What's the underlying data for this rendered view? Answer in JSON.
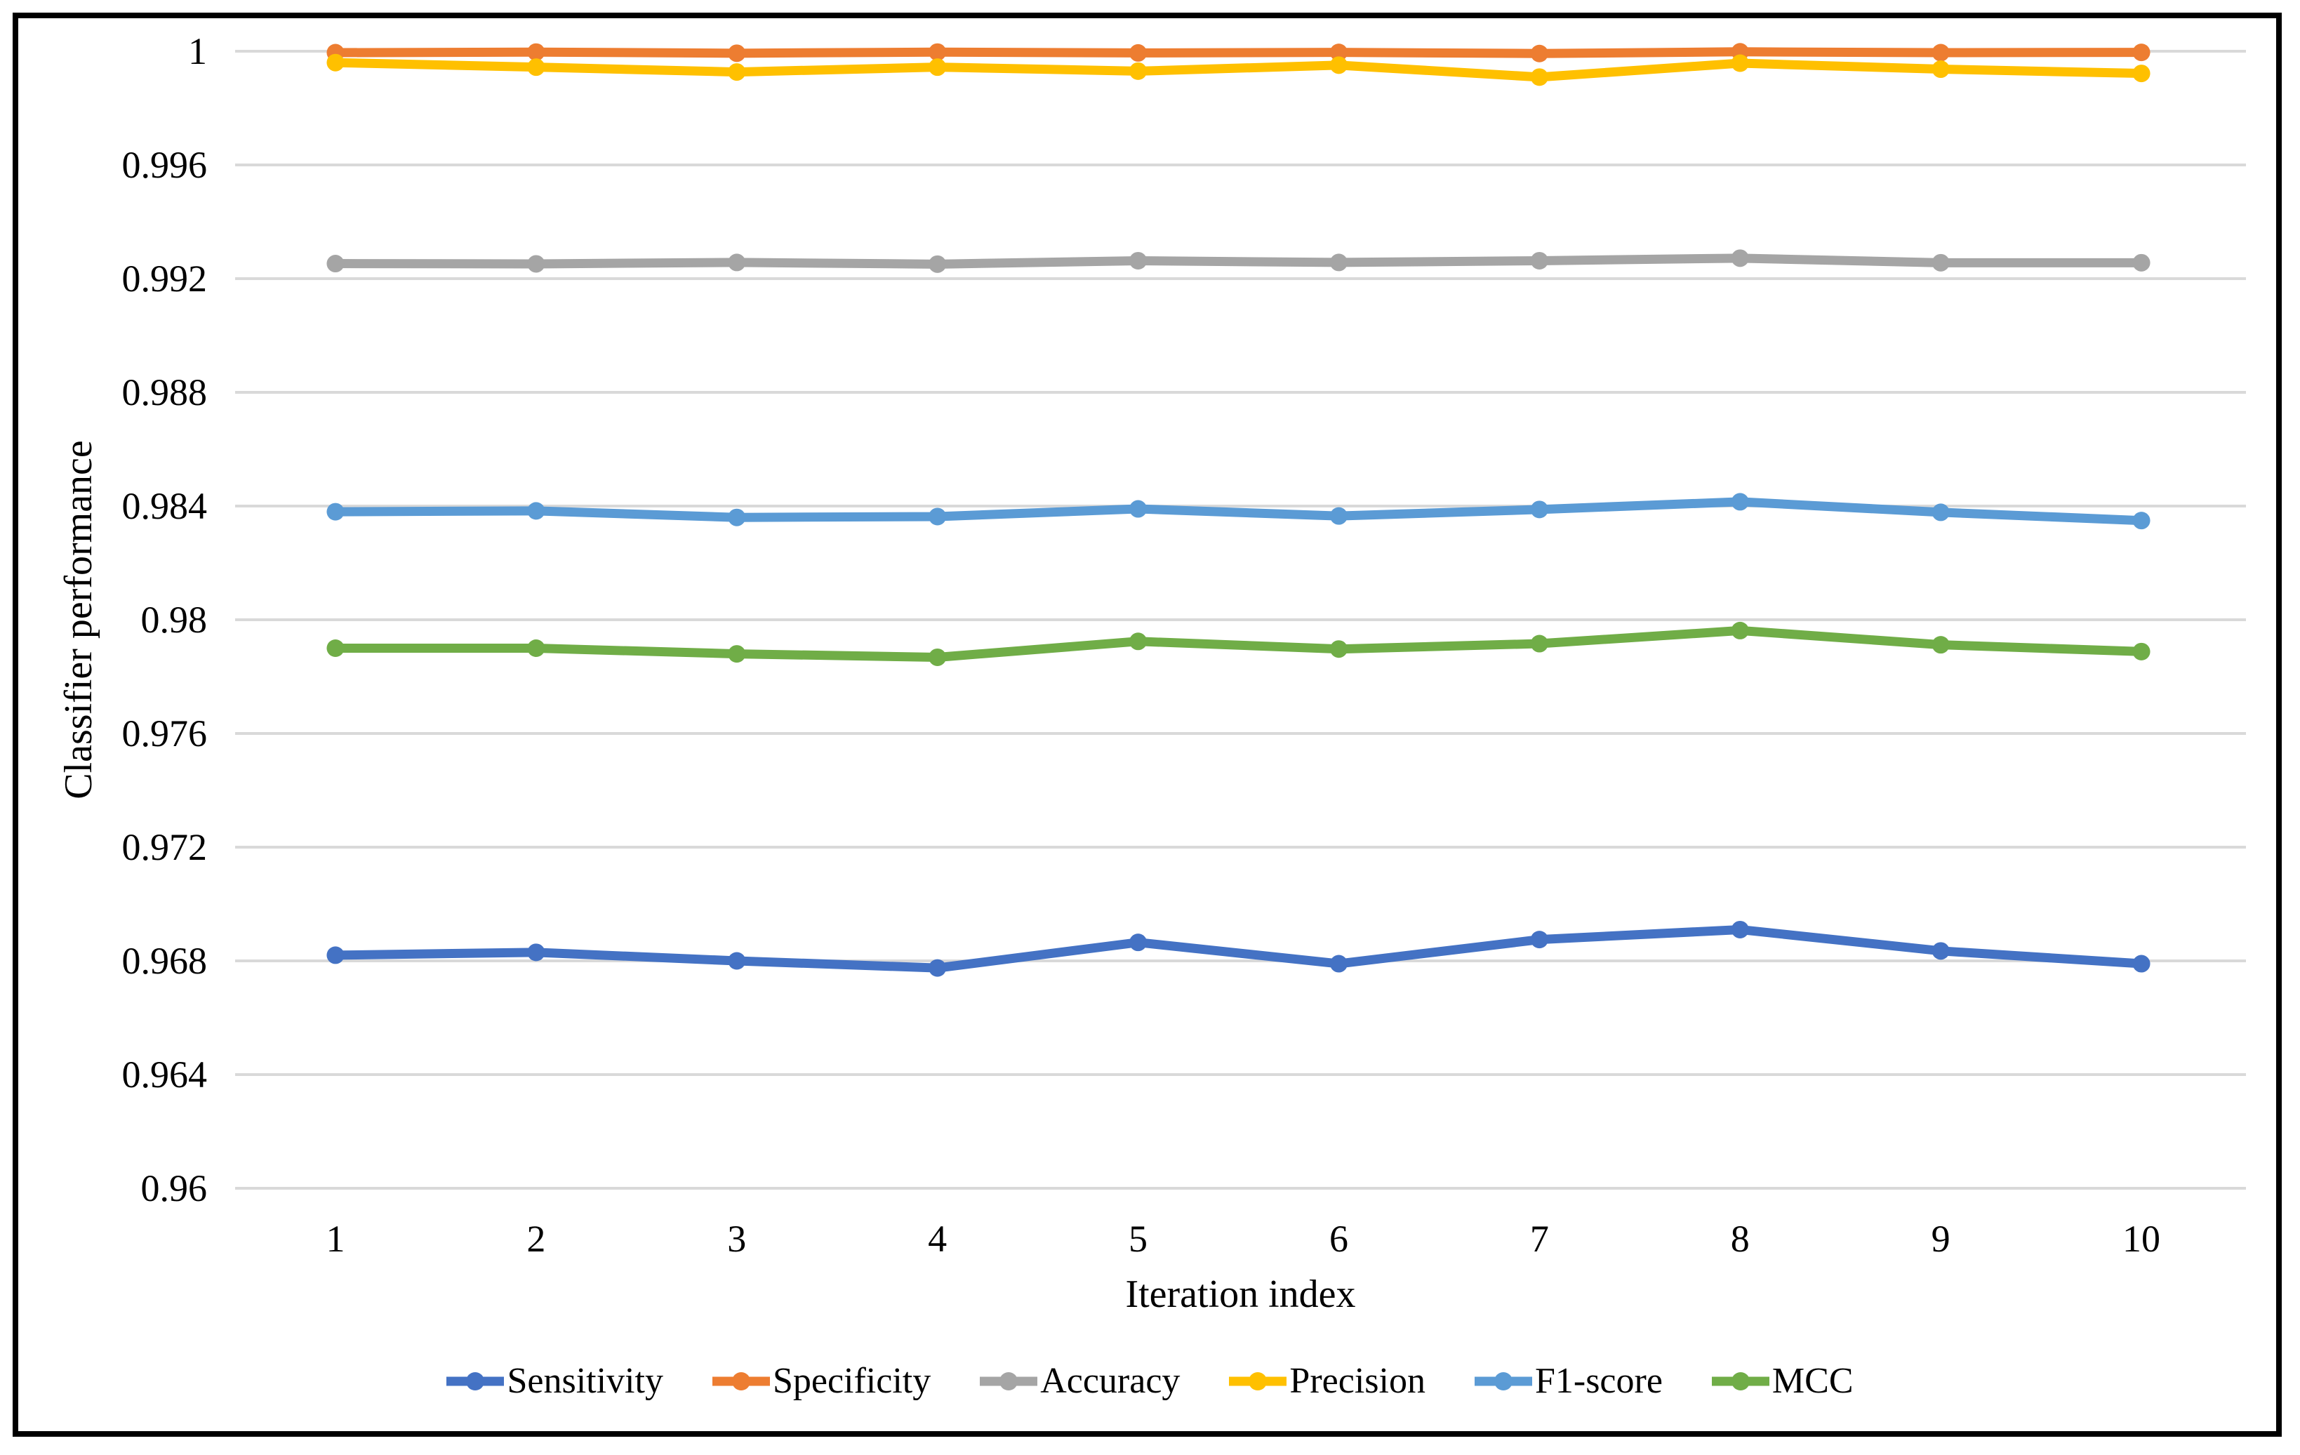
{
  "chart_data": {
    "type": "line",
    "title": "",
    "xlabel": "Iteration index",
    "ylabel": "Classifier performance",
    "x": [
      1,
      2,
      3,
      4,
      5,
      6,
      7,
      8,
      9,
      10
    ],
    "x_tick_labels": [
      "1",
      "2",
      "3",
      "4",
      "5",
      "6",
      "7",
      "8",
      "9",
      "10"
    ],
    "ylim": [
      0.96,
      1.0
    ],
    "ytick_step": 0.004,
    "yticks": [
      1,
      0.996,
      0.992,
      0.988,
      0.984,
      0.98,
      0.976,
      0.972,
      0.968,
      0.964,
      0.96
    ],
    "ytick_labels": [
      "1",
      "0.996",
      "0.992",
      "0.988",
      "0.984",
      "0.98",
      "0.976",
      "0.972",
      "0.968",
      "0.964",
      "0.96"
    ],
    "grid": true,
    "grid_color": "#D9D9D9",
    "border_color": "#000000",
    "legend_position": "bottom",
    "series": [
      {
        "name": "Sensitivity",
        "color": "#4472C4",
        "values": [
          0.9682,
          0.9683,
          0.968,
          0.96775,
          0.96865,
          0.9679,
          0.96875,
          0.9691,
          0.96835,
          0.9679
        ]
      },
      {
        "name": "Specificity",
        "color": "#ED7D31",
        "values": [
          0.99995,
          0.99997,
          0.99993,
          0.99997,
          0.99994,
          0.99996,
          0.99992,
          0.99998,
          0.99995,
          0.99996
        ]
      },
      {
        "name": "Accuracy",
        "color": "#A5A5A5",
        "values": [
          0.99253,
          0.99252,
          0.99257,
          0.99251,
          0.99263,
          0.99257,
          0.99263,
          0.99272,
          0.99256,
          0.99256
        ]
      },
      {
        "name": "Precision",
        "color": "#FFC000",
        "values": [
          0.9996,
          0.99944,
          0.99927,
          0.99944,
          0.9993,
          0.99951,
          0.99909,
          0.99958,
          0.99937,
          0.99922
        ]
      },
      {
        "name": "F1-score",
        "color": "#5B9BD5",
        "values": [
          0.9838,
          0.98383,
          0.9836,
          0.98363,
          0.9839,
          0.98365,
          0.98388,
          0.98415,
          0.98378,
          0.98349
        ]
      },
      {
        "name": "MCC",
        "color": "#70AD47",
        "values": [
          0.979,
          0.979,
          0.9788,
          0.97868,
          0.97924,
          0.97897,
          0.97916,
          0.97962,
          0.97912,
          0.97888
        ]
      }
    ]
  }
}
